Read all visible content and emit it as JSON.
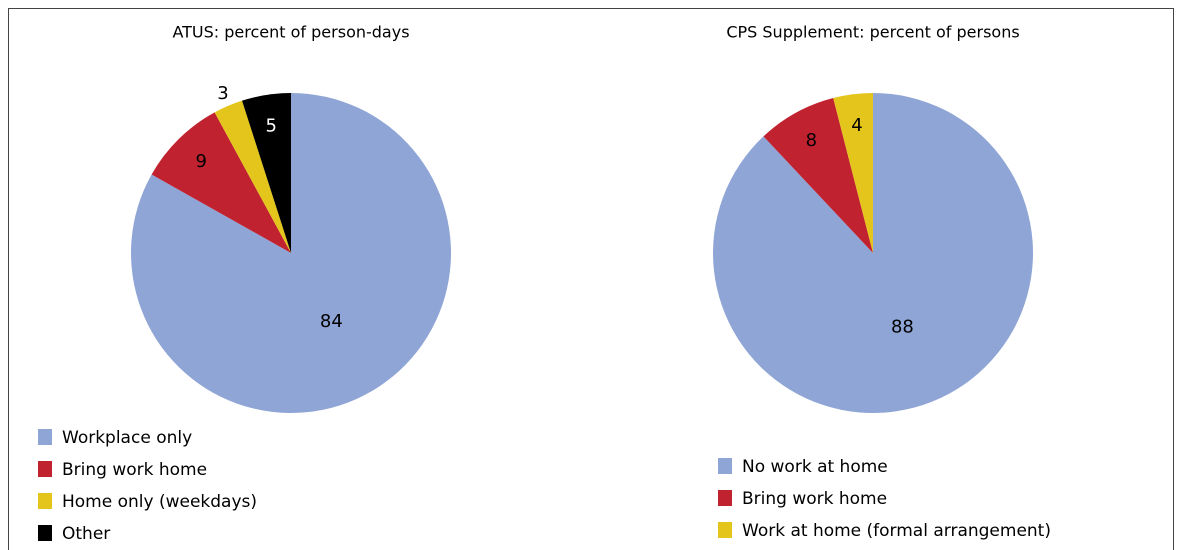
{
  "chart_data": [
    {
      "type": "pie",
      "title": "ATUS: percent of person-days",
      "categories": [
        "Workplace only",
        "Bring work home",
        "Home only (weekdays)",
        "Other"
      ],
      "values": [
        84,
        9,
        3,
        5
      ],
      "colors": [
        "#8fa5d6",
        "#c0222f",
        "#e3c51c",
        "#000000"
      ]
    },
    {
      "type": "pie",
      "title": "CPS Supplement: percent of persons",
      "categories": [
        "No work at home",
        "Bring work home",
        "Work at home (formal arrangement)"
      ],
      "values": [
        88,
        8,
        4
      ],
      "colors": [
        "#8fa5d6",
        "#c0222f",
        "#e3c51c"
      ]
    }
  ]
}
